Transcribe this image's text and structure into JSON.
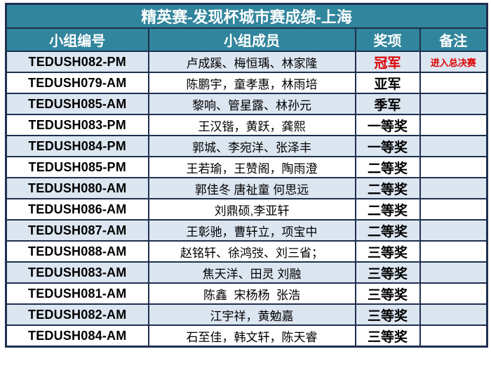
{
  "title": "精英赛-发现杯城市赛成绩-上海",
  "columns": [
    "小组编号",
    "小组成员",
    "奖项",
    "备注"
  ],
  "rows": [
    {
      "id": "TEDUSH082-PM",
      "members": "卢成蹊、梅恒瑀、林家隆",
      "award": "冠军",
      "award_red": true,
      "note": "进入总决赛"
    },
    {
      "id": "TEDUSH079-AM",
      "members": "陈鹏宇，童孝惠，林雨培",
      "award": "亚军",
      "award_red": false,
      "note": ""
    },
    {
      "id": "TEDUSH085-AM",
      "members": "黎响、管星露、林孙元",
      "award": "季军",
      "award_red": false,
      "note": ""
    },
    {
      "id": "TEDUSH083-PM",
      "members": "王汉锴，黄跃，龚熙",
      "award": "一等奖",
      "award_red": false,
      "note": ""
    },
    {
      "id": "TEDUSH084-PM",
      "members": "郭城、李宛洋、张泽丰",
      "award": "一等奖",
      "award_red": false,
      "note": ""
    },
    {
      "id": "TEDUSH085-PM",
      "members": "王若瑜，王赞阁，陶雨澄",
      "award": "二等奖",
      "award_red": false,
      "note": ""
    },
    {
      "id": "TEDUSH080-AM",
      "members": "郭佳冬 唐祉童 何思远",
      "award": "二等奖",
      "award_red": false,
      "note": ""
    },
    {
      "id": "TEDUSH086-AM",
      "members": "刘鼎硕,李亚轩",
      "award": "二等奖",
      "award_red": false,
      "note": ""
    },
    {
      "id": "TEDUSH087-AM",
      "members": "王彰驰，曹轩立，项宝中",
      "award": "二等奖",
      "award_red": false,
      "note": ""
    },
    {
      "id": "TEDUSH088-AM",
      "members": "赵铭轩、徐鸿弢、刘三省；",
      "award": "三等奖",
      "award_red": false,
      "note": ""
    },
    {
      "id": "TEDUSH083-AM",
      "members": "焦天洋、田灵 刘融",
      "award": "三等奖",
      "award_red": false,
      "note": ""
    },
    {
      "id": "TEDUSH081-AM",
      "members": "陈鑫  宋杨杨  张浩",
      "award": "三等奖",
      "award_red": false,
      "note": ""
    },
    {
      "id": "TEDUSH082-AM",
      "members": "江宇祥，黄勉嘉",
      "award": "三等奖",
      "award_red": false,
      "note": ""
    },
    {
      "id": "TEDUSH084-AM",
      "members": "石至佳，韩文轩，陈天睿",
      "award": "三等奖",
      "award_red": false,
      "note": ""
    }
  ],
  "colors": {
    "header_bg": "#31859C",
    "alt_row_bg": "#DCE6F1",
    "border": "#1F3050",
    "red": "#DD0000",
    "title_text": "#FFFFFF"
  }
}
